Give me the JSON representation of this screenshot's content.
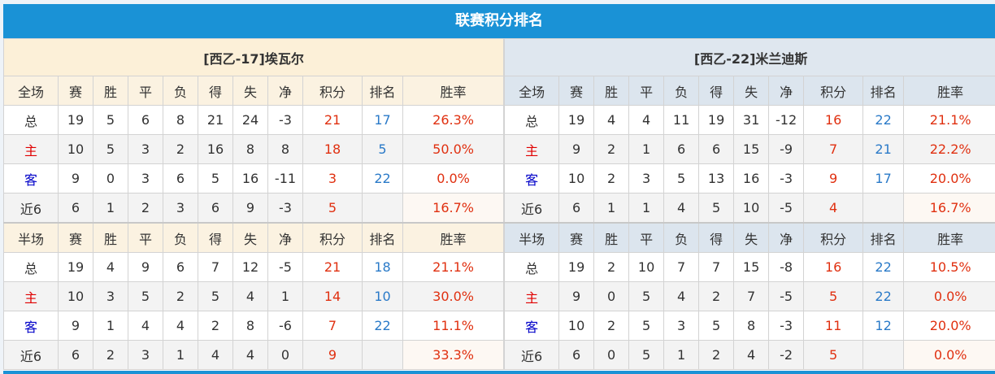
{
  "title": "联赛积分排名",
  "headers_full": [
    "全场",
    "赛",
    "胜",
    "平",
    "负",
    "得",
    "失",
    "净",
    "积分",
    "排名",
    "胜率"
  ],
  "headers_half": [
    "半场",
    "赛",
    "胜",
    "平",
    "负",
    "得",
    "失",
    "净",
    "积分",
    "排名",
    "胜率"
  ],
  "colors": {
    "title_bg": "#1a92d6",
    "points": "#e03010",
    "rank": "#2a7ac8",
    "home": "#e00000",
    "away": "#0000c8"
  },
  "teams": [
    {
      "name": "[西乙-17]埃瓦尔",
      "full": [
        [
          "总",
          "19",
          "5",
          "6",
          "8",
          "21",
          "24",
          "-3",
          "21",
          "17",
          "26.3%"
        ],
        [
          "主",
          "10",
          "5",
          "3",
          "2",
          "16",
          "8",
          "8",
          "18",
          "5",
          "50.0%"
        ],
        [
          "客",
          "9",
          "0",
          "3",
          "6",
          "5",
          "16",
          "-11",
          "3",
          "22",
          "0.0%"
        ],
        [
          "近6",
          "6",
          "1",
          "2",
          "3",
          "6",
          "9",
          "-3",
          "5",
          "",
          "16.7%"
        ]
      ],
      "half": [
        [
          "总",
          "19",
          "4",
          "9",
          "6",
          "7",
          "12",
          "-5",
          "21",
          "18",
          "21.1%"
        ],
        [
          "主",
          "10",
          "3",
          "5",
          "2",
          "5",
          "4",
          "1",
          "14",
          "10",
          "30.0%"
        ],
        [
          "客",
          "9",
          "1",
          "4",
          "4",
          "2",
          "8",
          "-6",
          "7",
          "22",
          "11.1%"
        ],
        [
          "近6",
          "6",
          "2",
          "3",
          "1",
          "4",
          "4",
          "0",
          "9",
          "",
          "33.3%"
        ]
      ]
    },
    {
      "name": "[西乙-22]米兰迪斯",
      "full": [
        [
          "总",
          "19",
          "4",
          "4",
          "11",
          "19",
          "31",
          "-12",
          "16",
          "22",
          "21.1%"
        ],
        [
          "主",
          "9",
          "2",
          "1",
          "6",
          "6",
          "15",
          "-9",
          "7",
          "21",
          "22.2%"
        ],
        [
          "客",
          "10",
          "2",
          "3",
          "5",
          "13",
          "16",
          "-3",
          "9",
          "17",
          "20.0%"
        ],
        [
          "近6",
          "6",
          "1",
          "1",
          "4",
          "5",
          "10",
          "-5",
          "4",
          "",
          "16.7%"
        ]
      ],
      "half": [
        [
          "总",
          "19",
          "2",
          "10",
          "7",
          "7",
          "15",
          "-8",
          "16",
          "22",
          "10.5%"
        ],
        [
          "主",
          "9",
          "0",
          "5",
          "4",
          "2",
          "7",
          "-5",
          "5",
          "22",
          "0.0%"
        ],
        [
          "客",
          "10",
          "2",
          "5",
          "3",
          "5",
          "8",
          "-3",
          "11",
          "12",
          "20.0%"
        ],
        [
          "近6",
          "6",
          "0",
          "5",
          "1",
          "2",
          "4",
          "-2",
          "5",
          "",
          "0.0%"
        ]
      ]
    }
  ]
}
